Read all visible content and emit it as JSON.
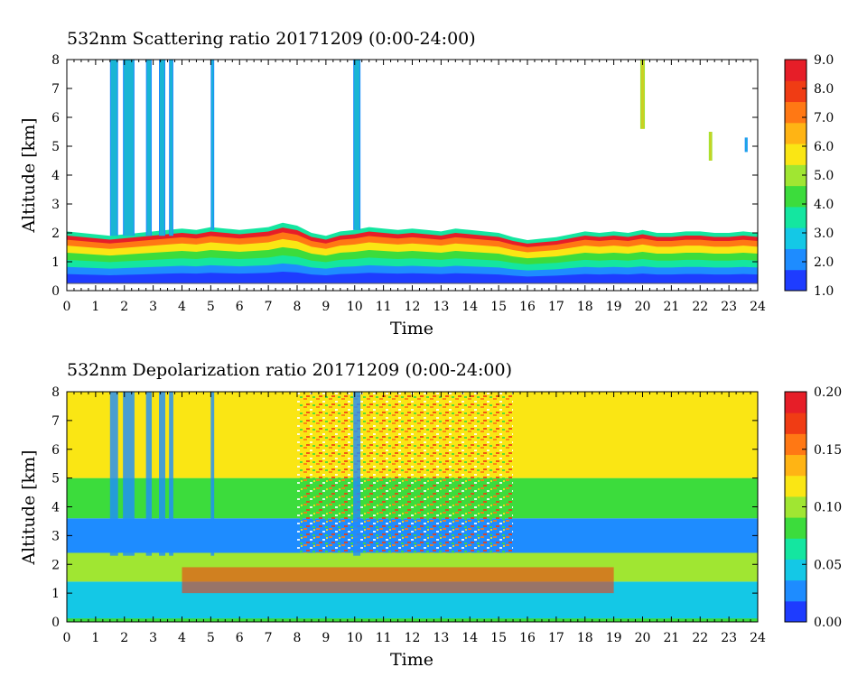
{
  "chart_data": [
    {
      "type": "heatmap",
      "title": "532nm Scattering ratio  20171209 (0:00-24:00)",
      "xlabel": "Time",
      "ylabel": "Altitude [km]",
      "xlim": [
        0,
        24
      ],
      "ylim": [
        0,
        8
      ],
      "x_ticks": [
        "0",
        "1",
        "2",
        "3",
        "4",
        "5",
        "6",
        "7",
        "8",
        "9",
        "10",
        "11",
        "12",
        "13",
        "14",
        "15",
        "16",
        "17",
        "18",
        "19",
        "20",
        "21",
        "22",
        "23",
        "24"
      ],
      "y_ticks": [
        "0",
        "1",
        "2",
        "3",
        "4",
        "5",
        "6",
        "7",
        "8"
      ],
      "colorbar": {
        "range": [
          1.0,
          9.0
        ],
        "ticks": [
          "1.0",
          "2.0",
          "3.0",
          "4.0",
          "5.0",
          "6.0",
          "7.0",
          "8.0",
          "9.0"
        ],
        "colors": [
          "#1e3cff",
          "#1e8cff",
          "#14c8e6",
          "#14e6a0",
          "#3cdc3c",
          "#a0e632",
          "#fae614",
          "#ffb414",
          "#ff7814",
          "#f03c14",
          "#e61e28"
        ]
      },
      "boundary_layer_top_km": [
        [
          0,
          2.05
        ],
        [
          0.5,
          2.0
        ],
        [
          1,
          1.95
        ],
        [
          1.5,
          1.9
        ],
        [
          2,
          1.95
        ],
        [
          2.5,
          2.0
        ],
        [
          3,
          2.05
        ],
        [
          3.5,
          2.1
        ],
        [
          4,
          2.15
        ],
        [
          4.5,
          2.1
        ],
        [
          5,
          2.2
        ],
        [
          5.5,
          2.15
        ],
        [
          6,
          2.1
        ],
        [
          6.5,
          2.15
        ],
        [
          7,
          2.2
        ],
        [
          7.5,
          2.35
        ],
        [
          8,
          2.25
        ],
        [
          8.5,
          2.0
        ],
        [
          9,
          1.9
        ],
        [
          9.5,
          2.05
        ],
        [
          10,
          2.1
        ],
        [
          10.5,
          2.2
        ],
        [
          11,
          2.15
        ],
        [
          11.5,
          2.1
        ],
        [
          12,
          2.15
        ],
        [
          12.5,
          2.1
        ],
        [
          13,
          2.05
        ],
        [
          13.5,
          2.15
        ],
        [
          14,
          2.1
        ],
        [
          14.5,
          2.05
        ],
        [
          15,
          2.0
        ],
        [
          15.5,
          1.85
        ],
        [
          16,
          1.75
        ],
        [
          16.5,
          1.8
        ],
        [
          17,
          1.85
        ],
        [
          17.5,
          1.95
        ],
        [
          18,
          2.05
        ],
        [
          18.5,
          2.0
        ],
        [
          19,
          2.05
        ],
        [
          19.5,
          2.0
        ],
        [
          20,
          2.1
        ],
        [
          20.5,
          2.0
        ],
        [
          21,
          2.0
        ],
        [
          21.5,
          2.05
        ],
        [
          22,
          2.05
        ],
        [
          22.5,
          2.0
        ],
        [
          23,
          2.0
        ],
        [
          23.5,
          2.05
        ],
        [
          24,
          2.0
        ]
      ],
      "cloud_columns": [
        {
          "x0": 1.5,
          "x1": 1.78,
          "y0": 1.9,
          "y1": 8.0,
          "value": 2.0
        },
        {
          "x0": 1.95,
          "x1": 2.35,
          "y0": 1.9,
          "y1": 8.0,
          "value": 2.0
        },
        {
          "x0": 2.75,
          "x1": 2.95,
          "y0": 1.9,
          "y1": 8.0,
          "value": 2.0
        },
        {
          "x0": 3.2,
          "x1": 3.42,
          "y0": 1.9,
          "y1": 8.0,
          "value": 2.0
        },
        {
          "x0": 3.55,
          "x1": 3.7,
          "y0": 1.9,
          "y1": 8.0,
          "value": 2.0
        },
        {
          "x0": 5.0,
          "x1": 5.12,
          "y0": 2.1,
          "y1": 8.0,
          "value": 2.0
        },
        {
          "x0": 9.95,
          "x1": 10.2,
          "y0": 2.1,
          "y1": 8.0,
          "value": 2.0
        },
        {
          "x0": 19.92,
          "x1": 20.08,
          "y0": 5.6,
          "y1": 8.0,
          "value": 5.0
        },
        {
          "x0": 22.3,
          "x1": 22.42,
          "y0": 4.5,
          "y1": 5.5,
          "value": 5.0
        },
        {
          "x0": 23.55,
          "x1": 23.65,
          "y0": 4.8,
          "y1": 5.3,
          "value": 2.0
        }
      ]
    },
    {
      "type": "heatmap",
      "title": "532nm Depolarization ratio  20171209 (0:00-24:00)",
      "xlabel": "Time",
      "ylabel": "Altitude [km]",
      "xlim": [
        0,
        24
      ],
      "ylim": [
        0,
        8
      ],
      "x_ticks": [
        "0",
        "1",
        "2",
        "3",
        "4",
        "5",
        "6",
        "7",
        "8",
        "9",
        "10",
        "11",
        "12",
        "13",
        "14",
        "15",
        "16",
        "17",
        "18",
        "19",
        "20",
        "21",
        "22",
        "23",
        "24"
      ],
      "y_ticks": [
        "0",
        "1",
        "2",
        "3",
        "4",
        "5",
        "6",
        "7",
        "8"
      ],
      "colorbar": {
        "range": [
          0.0,
          0.2
        ],
        "ticks": [
          "0.00",
          "0.05",
          "0.10",
          "0.15",
          "0.20"
        ],
        "colors": [
          "#1e3cff",
          "#1e8cff",
          "#14c8e6",
          "#14e6a0",
          "#3cdc3c",
          "#a0e632",
          "#fae614",
          "#ffb414",
          "#ff7814",
          "#f03c14",
          "#e61e28"
        ]
      },
      "layers": [
        {
          "y0": 0.0,
          "y1": 1.4,
          "value": 0.03
        },
        {
          "y0": 1.4,
          "y1": 2.4,
          "value": 0.1
        },
        {
          "y0": 2.4,
          "y1": 3.6,
          "value": 0.02
        },
        {
          "y0": 3.6,
          "y1": 5.0,
          "value": 0.08
        },
        {
          "y0": 5.0,
          "y1": 8.0,
          "value": 0.12
        }
      ]
    }
  ]
}
